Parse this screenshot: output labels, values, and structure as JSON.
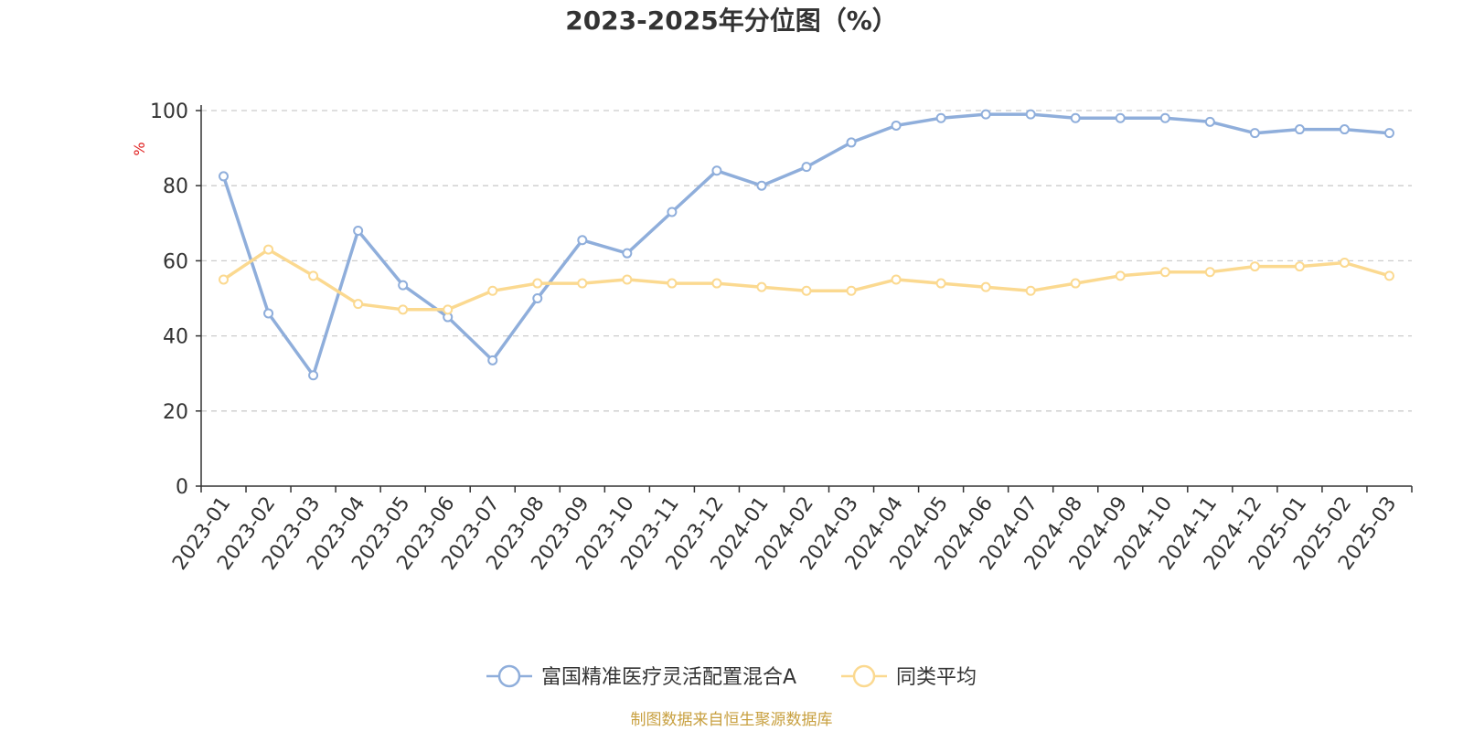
{
  "chart_data": {
    "type": "line",
    "title": "2023-2025年分位图（%）",
    "y_unit": "%",
    "xlabel": "",
    "ylabel": "",
    "ylim": [
      0,
      100
    ],
    "y_ticks": [
      0,
      20,
      40,
      60,
      80,
      100
    ],
    "grid": true,
    "legend_position": "bottom",
    "categories": [
      "2023-01",
      "2023-02",
      "2023-03",
      "2023-04",
      "2023-05",
      "2023-06",
      "2023-07",
      "2023-08",
      "2023-09",
      "2023-10",
      "2023-11",
      "2023-12",
      "2024-01",
      "2024-02",
      "2024-03",
      "2024-04",
      "2024-05",
      "2024-06",
      "2024-07",
      "2024-08",
      "2024-09",
      "2024-10",
      "2024-11",
      "2024-12",
      "2025-01",
      "2025-02",
      "2025-03"
    ],
    "series": [
      {
        "name": "富国精准医疗灵活配置混合A",
        "color": "#8faedb",
        "values": [
          82.5,
          46,
          29.5,
          68,
          53.5,
          45,
          33.5,
          50,
          65.5,
          62,
          73,
          84,
          80,
          85,
          91.5,
          96,
          98,
          99,
          99,
          98,
          98,
          98,
          97,
          94,
          95,
          95,
          94
        ]
      },
      {
        "name": "同类平均",
        "color": "#fbd990",
        "values": [
          55,
          63,
          56,
          48.5,
          47,
          47,
          52,
          54,
          54,
          55,
          54,
          54,
          53,
          52,
          52,
          55,
          54,
          53,
          52,
          54,
          56,
          57,
          57,
          58.5,
          58.5,
          59.5,
          56
        ]
      }
    ]
  },
  "source": {
    "text": "制图数据来自恒生聚源数据库",
    "color": "#c8a040"
  },
  "y_unit_color": "#e02020"
}
